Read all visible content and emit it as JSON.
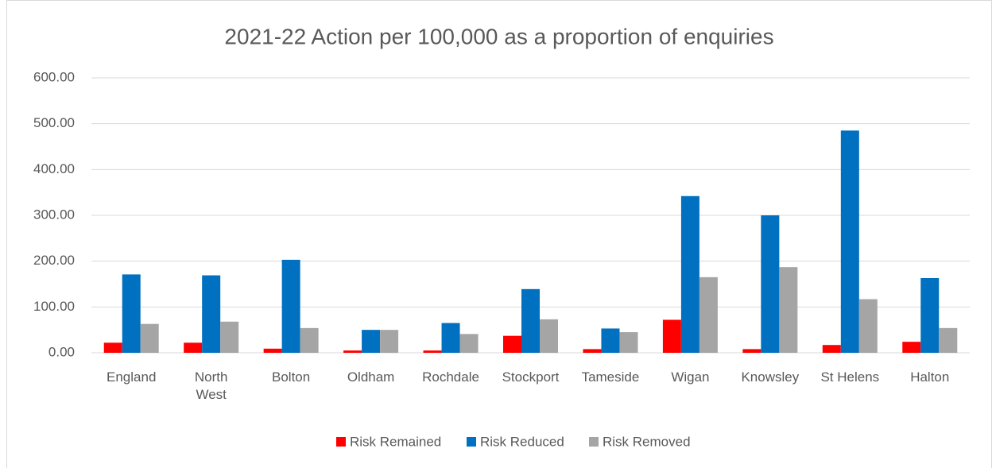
{
  "chart_data": {
    "type": "bar",
    "title": "2021-22 Action per 100,000 as a proportion of enquiries",
    "categories": [
      "England",
      "North West",
      "Bolton",
      "Oldham",
      "Rochdale",
      "Stockport",
      "Tameside",
      "Wigan",
      "Knowsley",
      "St Helens",
      "Halton"
    ],
    "series": [
      {
        "name": "Risk Remained",
        "color": "#ff0000",
        "values": [
          22,
          22,
          9,
          5,
          5,
          37,
          8,
          72,
          8,
          17,
          24
        ]
      },
      {
        "name": "Risk Reduced",
        "color": "#0070c0",
        "values": [
          171,
          169,
          203,
          50,
          65,
          139,
          53,
          342,
          300,
          485,
          163
        ]
      },
      {
        "name": "Risk Removed",
        "color": "#a5a5a5",
        "values": [
          63,
          68,
          54,
          50,
          41,
          73,
          45,
          165,
          187,
          117,
          54
        ]
      }
    ],
    "ylim": [
      0,
      600
    ],
    "yticks": [
      {
        "value": 0,
        "label": "0.00"
      },
      {
        "value": 100,
        "label": "100.00"
      },
      {
        "value": 200,
        "label": "200.00"
      },
      {
        "value": 300,
        "label": "300.00"
      },
      {
        "value": 400,
        "label": "400.00"
      },
      {
        "value": 500,
        "label": "500.00"
      },
      {
        "value": 600,
        "label": "600.00"
      }
    ],
    "grid": true,
    "legend": "bottom"
  }
}
